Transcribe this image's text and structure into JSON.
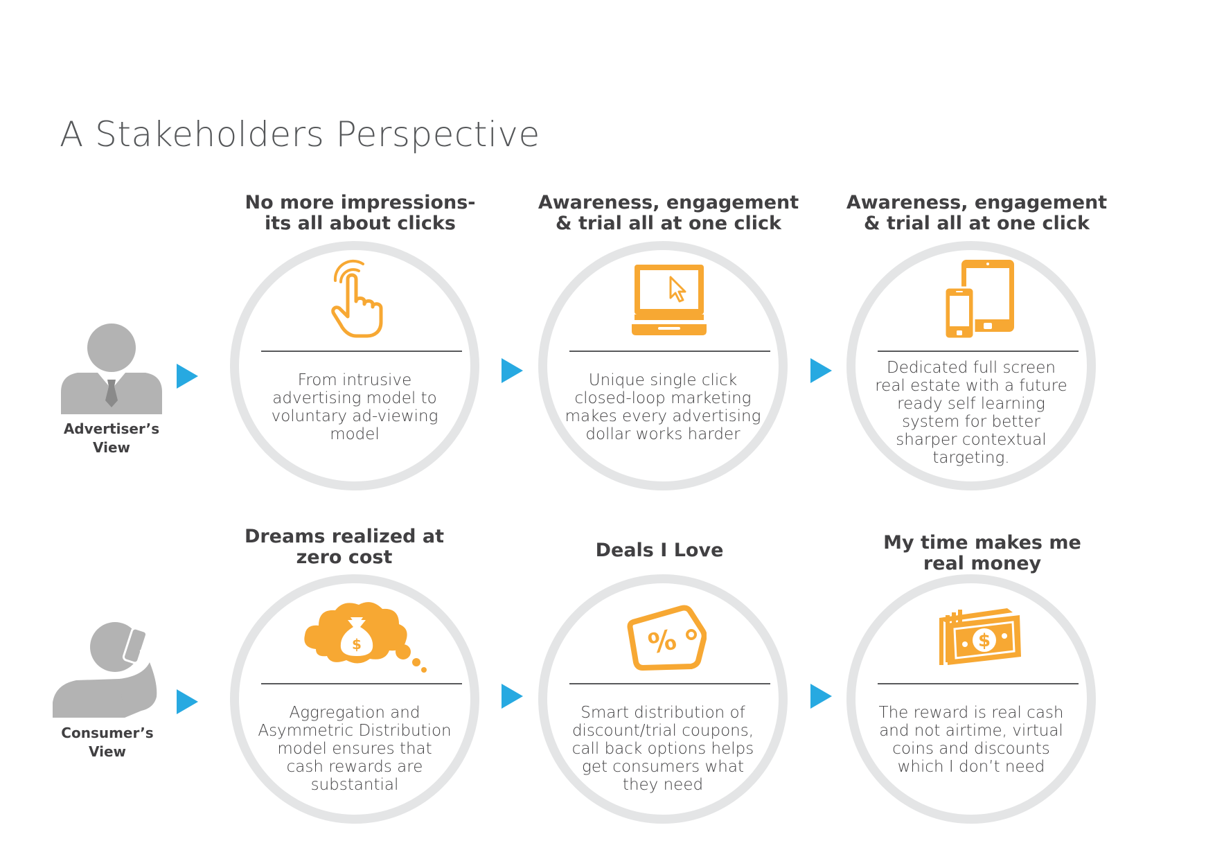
{
  "title": "A Stakeholders Perspective",
  "colors": {
    "accent": "#F7A833",
    "arrow": "#27A9E1",
    "ring": "#E4E5E6",
    "text": "#414042",
    "person": "#B3B3B3"
  },
  "rows": [
    {
      "label": [
        "Advertiser’s",
        "View"
      ],
      "icon": "advertiser-person-icon",
      "cards": [
        {
          "heading": [
            "No more impressions-",
            "its all about clicks"
          ],
          "icon": "tap-hand-icon",
          "desc": [
            "From intrusive",
            "advertising model to",
            "voluntary ad-viewing",
            "model"
          ]
        },
        {
          "heading": [
            "Awareness, engagement",
            "& trial all at one click"
          ],
          "icon": "computer-cursor-icon",
          "desc": [
            "Unique single click",
            "closed-loop marketing",
            "makes every advertising",
            "dollar works harder"
          ]
        },
        {
          "heading": [
            "Awareness, engagement",
            "& trial all at one click"
          ],
          "icon": "phone-tablet-icon",
          "desc": [
            "Dedicated full screen",
            "real estate with a future",
            "ready self learning",
            "system for better",
            "sharper contextual",
            "targeting."
          ]
        }
      ]
    },
    {
      "label": [
        "Consumer’s",
        "View"
      ],
      "icon": "consumer-person-phone-icon",
      "cards": [
        {
          "heading": [
            "Dreams realized at",
            "zero cost"
          ],
          "icon": "money-bag-thought-icon",
          "desc": [
            "Aggregation and",
            "Asymmetric Distribution",
            "model ensures that",
            "cash rewards are",
            "substantial"
          ]
        },
        {
          "heading": [
            "Deals I Love"
          ],
          "icon": "discount-tag-icon",
          "desc": [
            "Smart distribution of",
            "discount/trial coupons,",
            "call back options helps",
            "get consumers what",
            "they need"
          ]
        },
        {
          "heading": [
            "My time makes me",
            "real money"
          ],
          "icon": "cash-stack-icon",
          "desc": [
            "The reward is real cash",
            "and not airtime, virtual",
            "coins and discounts",
            "which I don’t need"
          ]
        }
      ]
    }
  ]
}
